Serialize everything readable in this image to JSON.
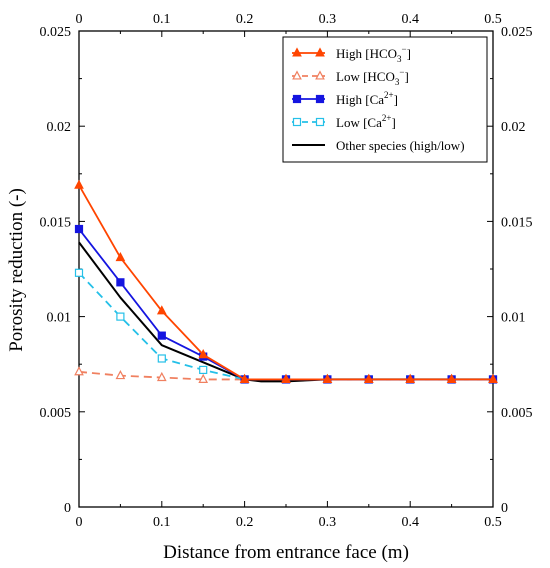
{
  "chart_data": {
    "type": "line",
    "xlabel": "Distance from entrance face (m)",
    "ylabel": "Porosity reduction (-)",
    "xlim": [
      0,
      0.5
    ],
    "ylim": [
      0,
      0.025
    ],
    "x_ticks": [
      0,
      0.1,
      0.2,
      0.3,
      0.4,
      0.5
    ],
    "x_tick_labels": [
      "0",
      "0.1",
      "0.2",
      "0.3",
      "0.4",
      "0.5"
    ],
    "y_ticks": [
      0,
      0.005,
      0.01,
      0.015,
      0.02,
      0.025
    ],
    "y_tick_labels": [
      "0",
      "0.005",
      "0.01",
      "0.015",
      "0.02",
      "0.025"
    ],
    "grid": false,
    "legend_position": "top-right",
    "x": [
      0,
      0.05,
      0.1,
      0.15,
      0.2,
      0.25,
      0.3,
      0.35,
      0.4,
      0.45,
      0.5
    ],
    "series": [
      {
        "name": "High [HCO3−]",
        "legend_main": "High [HCO",
        "legend_sub": "3",
        "legend_sup": "−",
        "legend_end": "]",
        "color": "#ff4500",
        "marker": "triangle",
        "marker_fill": "filled",
        "line_style": "solid",
        "values": [
          0.0169,
          0.0131,
          0.0103,
          0.008,
          0.0067,
          0.0067,
          0.0067,
          0.0067,
          0.0067,
          0.0067,
          0.0067
        ]
      },
      {
        "name": "Low [HCO3−]",
        "legend_main": "Low [HCO",
        "legend_sub": "3",
        "legend_sup": "−",
        "legend_end": "]",
        "color": "#f08060",
        "marker": "triangle",
        "marker_fill": "open",
        "line_style": "dashed",
        "values": [
          0.0071,
          0.0069,
          0.0068,
          0.0067,
          0.0067,
          0.0067,
          0.0067,
          0.0067,
          0.0067,
          0.0067,
          0.0067
        ]
      },
      {
        "name": "High [Ca2+]",
        "legend_main": "High [Ca",
        "legend_sub": "",
        "legend_sup": "2+",
        "legend_end": "]",
        "color": "#1515e0",
        "marker": "square",
        "marker_fill": "filled",
        "line_style": "solid",
        "values": [
          0.0146,
          0.0118,
          0.009,
          0.0079,
          0.0067,
          0.0067,
          0.0067,
          0.0067,
          0.0067,
          0.0067,
          0.0067
        ]
      },
      {
        "name": "Low [Ca2+]",
        "legend_main": "Low [Ca",
        "legend_sub": "",
        "legend_sup": "2+",
        "legend_end": "]",
        "color": "#25c0e8",
        "marker": "square",
        "marker_fill": "open",
        "line_style": "dashed",
        "values": [
          0.0123,
          0.01,
          0.0078,
          0.0072,
          0.0067,
          0.0067,
          0.0067,
          0.0067,
          0.0067,
          0.0067,
          0.0067
        ]
      },
      {
        "name": "Other species (high/low)",
        "legend_main": "Other species (high/low)",
        "legend_sub": "",
        "legend_sup": "",
        "legend_end": "",
        "color": "#000000",
        "marker": "none",
        "marker_fill": "none",
        "line_style": "solid",
        "x": [
          0,
          0.05,
          0.1,
          0.15,
          0.2,
          0.22,
          0.25,
          0.3,
          0.35,
          0.4,
          0.45,
          0.5
        ],
        "values": [
          0.0139,
          0.011,
          0.0085,
          0.0076,
          0.0067,
          0.0066,
          0.0066,
          0.0067,
          0.0067,
          0.0067,
          0.0067,
          0.0067
        ]
      }
    ]
  }
}
